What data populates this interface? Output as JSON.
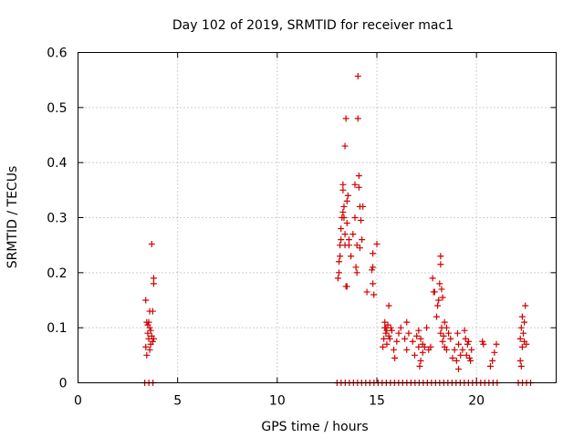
{
  "chart_data": {
    "type": "scatter",
    "title": "Day 102 of 2019, SRMTID for receiver mac1",
    "xlabel": "GPS time / hours",
    "ylabel": "SRMTID / TECUs",
    "xlim": [
      0,
      24
    ],
    "ylim": [
      0,
      0.6
    ],
    "xticks": [
      0,
      5,
      10,
      15,
      20
    ],
    "xtick_labels": [
      "0",
      "5",
      "10",
      "15",
      "20"
    ],
    "yticks": [
      0,
      0.1,
      0.2,
      0.3,
      0.4,
      0.5,
      0.6
    ],
    "ytick_labels": [
      "0",
      "0.1",
      "0.2",
      "0.3",
      "0.4",
      "0.5",
      "0.6"
    ],
    "grid": true,
    "marker": "plus",
    "color": "#d20000",
    "series": [
      {
        "name": "SRMTID",
        "points": [
          [
            3.4,
            0.15
          ],
          [
            3.45,
            0.11
          ],
          [
            3.5,
            0.105
          ],
          [
            3.5,
            0.09
          ],
          [
            3.55,
            0.08
          ],
          [
            3.4,
            0.065
          ],
          [
            3.45,
            0.05
          ],
          [
            3.6,
            0.13
          ],
          [
            3.6,
            0.1
          ],
          [
            3.65,
            0.095
          ],
          [
            3.65,
            0.07
          ],
          [
            3.7,
            0.085
          ],
          [
            3.75,
            0.075
          ],
          [
            3.8,
            0.08
          ],
          [
            3.7,
            0.252
          ],
          [
            3.8,
            0.19
          ],
          [
            3.8,
            0.18
          ],
          [
            3.55,
            0.11
          ],
          [
            3.75,
            0.13
          ],
          [
            3.6,
            0.06
          ],
          [
            13.05,
            0.19
          ],
          [
            13.1,
            0.2
          ],
          [
            13.1,
            0.22
          ],
          [
            13.15,
            0.23
          ],
          [
            13.15,
            0.25
          ],
          [
            13.2,
            0.26
          ],
          [
            13.2,
            0.28
          ],
          [
            13.25,
            0.3
          ],
          [
            13.3,
            0.31
          ],
          [
            13.3,
            0.35
          ],
          [
            13.3,
            0.36
          ],
          [
            13.35,
            0.32
          ],
          [
            13.35,
            0.3
          ],
          [
            13.4,
            0.27
          ],
          [
            13.4,
            0.25
          ],
          [
            13.4,
            0.43
          ],
          [
            13.45,
            0.48
          ],
          [
            13.5,
            0.33
          ],
          [
            13.5,
            0.29
          ],
          [
            13.55,
            0.34
          ],
          [
            13.6,
            0.26
          ],
          [
            13.45,
            0.175
          ],
          [
            13.5,
            0.175
          ],
          [
            13.6,
            0.25
          ],
          [
            13.7,
            0.23
          ],
          [
            13.8,
            0.27
          ],
          [
            13.9,
            0.36
          ],
          [
            13.9,
            0.3
          ],
          [
            14.0,
            0.25
          ],
          [
            14.0,
            0.2
          ],
          [
            13.95,
            0.21
          ],
          [
            14.05,
            0.48
          ],
          [
            14.05,
            0.557
          ],
          [
            14.1,
            0.376
          ],
          [
            14.1,
            0.355
          ],
          [
            14.15,
            0.32
          ],
          [
            14.2,
            0.295
          ],
          [
            14.15,
            0.245
          ],
          [
            14.25,
            0.26
          ],
          [
            14.3,
            0.32
          ],
          [
            14.5,
            0.165
          ],
          [
            14.75,
            0.205
          ],
          [
            14.8,
            0.21
          ],
          [
            14.8,
            0.18
          ],
          [
            14.85,
            0.16
          ],
          [
            15.0,
            0.252
          ],
          [
            14.8,
            0.235
          ],
          [
            15.3,
            0.065
          ],
          [
            15.35,
            0.08
          ],
          [
            15.4,
            0.1
          ],
          [
            15.4,
            0.11
          ],
          [
            15.45,
            0.09
          ],
          [
            15.5,
            0.095
          ],
          [
            15.55,
            0.105
          ],
          [
            15.6,
            0.14
          ],
          [
            15.5,
            0.07
          ],
          [
            15.65,
            0.08
          ],
          [
            15.7,
            0.1
          ],
          [
            15.75,
            0.095
          ],
          [
            15.45,
            0.1
          ],
          [
            15.6,
            0.085
          ],
          [
            15.85,
            0.06
          ],
          [
            15.9,
            0.045
          ],
          [
            16.0,
            0.075
          ],
          [
            16.1,
            0.09
          ],
          [
            16.2,
            0.1
          ],
          [
            16.4,
            0.08
          ],
          [
            16.5,
            0.06
          ],
          [
            16.5,
            0.11
          ],
          [
            16.6,
            0.09
          ],
          [
            16.8,
            0.075
          ],
          [
            16.9,
            0.05
          ],
          [
            17.0,
            0.085
          ],
          [
            17.1,
            0.095
          ],
          [
            17.1,
            0.065
          ],
          [
            17.15,
            0.03
          ],
          [
            17.2,
            0.04
          ],
          [
            17.2,
            0.08
          ],
          [
            17.3,
            0.07
          ],
          [
            17.3,
            0.055
          ],
          [
            17.4,
            0.065
          ],
          [
            17.5,
            0.1
          ],
          [
            17.6,
            0.06
          ],
          [
            17.7,
            0.065
          ],
          [
            17.8,
            0.19
          ],
          [
            17.85,
            0.165
          ],
          [
            17.9,
            0.165
          ],
          [
            18.0,
            0.12
          ],
          [
            18.05,
            0.14
          ],
          [
            18.1,
            0.15
          ],
          [
            18.15,
            0.18
          ],
          [
            18.2,
            0.23
          ],
          [
            18.2,
            0.215
          ],
          [
            18.25,
            0.17
          ],
          [
            18.3,
            0.155
          ],
          [
            18.2,
            0.09
          ],
          [
            18.25,
            0.1
          ],
          [
            18.3,
            0.075
          ],
          [
            18.35,
            0.085
          ],
          [
            18.4,
            0.11
          ],
          [
            18.4,
            0.065
          ],
          [
            18.5,
            0.1
          ],
          [
            18.5,
            0.06
          ],
          [
            18.6,
            0.09
          ],
          [
            18.7,
            0.08
          ],
          [
            18.8,
            0.045
          ],
          [
            18.9,
            0.06
          ],
          [
            19.0,
            0.04
          ],
          [
            19.05,
            0.09
          ],
          [
            19.1,
            0.07
          ],
          [
            19.1,
            0.025
          ],
          [
            19.2,
            0.05
          ],
          [
            19.3,
            0.06
          ],
          [
            19.4,
            0.095
          ],
          [
            19.45,
            0.08
          ],
          [
            19.5,
            0.05
          ],
          [
            19.55,
            0.07
          ],
          [
            19.6,
            0.075
          ],
          [
            19.65,
            0.045
          ],
          [
            19.7,
            0.04
          ],
          [
            19.75,
            0.06
          ],
          [
            20.3,
            0.075
          ],
          [
            20.35,
            0.07
          ],
          [
            20.7,
            0.03
          ],
          [
            20.8,
            0.04
          ],
          [
            20.9,
            0.055
          ],
          [
            21.0,
            0.07
          ],
          [
            22.2,
            0.08
          ],
          [
            22.25,
            0.1
          ],
          [
            22.3,
            0.12
          ],
          [
            22.35,
            0.09
          ],
          [
            22.4,
            0.075
          ],
          [
            22.45,
            0.14
          ],
          [
            22.5,
            0.07
          ],
          [
            22.2,
            0.04
          ],
          [
            22.25,
            0.03
          ],
          [
            22.4,
            0.11
          ],
          [
            22.3,
            0.065
          ]
        ],
        "zero_ranges": [
          [
            3.35,
            3.85
          ],
          [
            13.0,
            21.2
          ],
          [
            22.1,
            22.9
          ]
        ]
      }
    ]
  }
}
